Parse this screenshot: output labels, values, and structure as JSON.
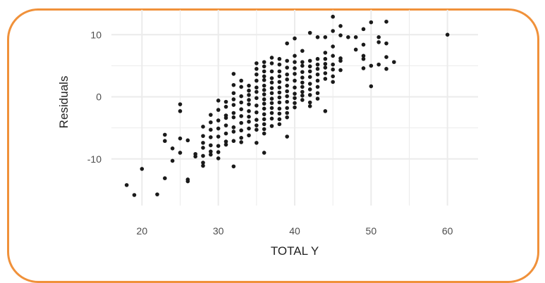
{
  "chart_data": {
    "type": "scatter",
    "title": "",
    "xlabel": "TOTAL Y",
    "ylabel": "Residuals",
    "xlim": [
      16,
      64
    ],
    "ylim": [
      -17.5,
      14
    ],
    "x_ticks": [
      20,
      30,
      40,
      50,
      60
    ],
    "y_ticks": [
      -10,
      0,
      10
    ],
    "x_tick_labels": [
      "20",
      "30",
      "40",
      "50",
      "60"
    ],
    "y_tick_labels": [
      "-10",
      "0",
      "10"
    ],
    "grid": true,
    "point_color": "#1a1a1a",
    "grid_color": "#ebebeb",
    "frame_color": "#f0913a",
    "points": [
      [
        18,
        -14.2
      ],
      [
        19,
        -15.8
      ],
      [
        20,
        -11.6
      ],
      [
        22,
        -15.7
      ],
      [
        23,
        -13.1
      ],
      [
        23,
        -6.1
      ],
      [
        23,
        -7.1
      ],
      [
        24,
        -8.3
      ],
      [
        24,
        -10.3
      ],
      [
        25,
        -1.2
      ],
      [
        25,
        -2.3
      ],
      [
        25,
        -6.7
      ],
      [
        25,
        -9.0
      ],
      [
        26,
        -7.0
      ],
      [
        26,
        -13.3
      ],
      [
        26,
        -13.6
      ],
      [
        27,
        -9.2
      ],
      [
        27,
        -9.6
      ],
      [
        28,
        -4.8
      ],
      [
        28,
        -6.3
      ],
      [
        28,
        -7.4
      ],
      [
        28,
        -8.2
      ],
      [
        28,
        -9.5
      ],
      [
        28,
        -10.6
      ],
      [
        28,
        -11.1
      ],
      [
        29,
        -2.9
      ],
      [
        29,
        -4.1
      ],
      [
        29,
        -5.3
      ],
      [
        29,
        -6.5
      ],
      [
        29,
        -7.8
      ],
      [
        29,
        -8.8
      ],
      [
        29,
        -9.3
      ],
      [
        30,
        -0.6
      ],
      [
        30,
        -2.1
      ],
      [
        30,
        -3.8
      ],
      [
        30,
        -5.1
      ],
      [
        30,
        -6.4
      ],
      [
        30,
        -7.9
      ],
      [
        30,
        -8.9
      ],
      [
        30,
        -9.9
      ],
      [
        31,
        -0.8
      ],
      [
        31,
        -1.6
      ],
      [
        31,
        -3.0
      ],
      [
        31,
        -3.4
      ],
      [
        31,
        -4.6
      ],
      [
        31,
        -5.9
      ],
      [
        31,
        -7.2
      ],
      [
        31,
        -7.7
      ],
      [
        32,
        3.7
      ],
      [
        32,
        1.9
      ],
      [
        32,
        0.6
      ],
      [
        32,
        -0.4
      ],
      [
        32,
        -1.3
      ],
      [
        32,
        -2.6
      ],
      [
        32,
        -3.3
      ],
      [
        32,
        -4.9
      ],
      [
        32,
        -5.6
      ],
      [
        32,
        -7.1
      ],
      [
        32,
        -11.2
      ],
      [
        33,
        2.6
      ],
      [
        33,
        1.6
      ],
      [
        33,
        0.1
      ],
      [
        33,
        -0.9
      ],
      [
        33,
        -2.0
      ],
      [
        33,
        -3.1
      ],
      [
        33,
        -4.2
      ],
      [
        33,
        -5.4
      ],
      [
        33,
        -6.6
      ],
      [
        33,
        -7.3
      ],
      [
        34,
        1.8
      ],
      [
        34,
        1.0
      ],
      [
        34,
        0.3
      ],
      [
        34,
        -0.5
      ],
      [
        34,
        -1.2
      ],
      [
        34,
        -2.3
      ],
      [
        34,
        -3.2
      ],
      [
        34,
        -4.0
      ],
      [
        34,
        -5.1
      ],
      [
        34,
        -6.2
      ],
      [
        35,
        5.4
      ],
      [
        35,
        4.5
      ],
      [
        35,
        3.6
      ],
      [
        35,
        2.6
      ],
      [
        35,
        1.5
      ],
      [
        35,
        0.8
      ],
      [
        35,
        -0.2
      ],
      [
        35,
        -1.4
      ],
      [
        35,
        -2.5
      ],
      [
        35,
        -3.7
      ],
      [
        35,
        -4.6
      ],
      [
        35,
        -5.3
      ],
      [
        35,
        -7.4
      ],
      [
        36,
        5.6
      ],
      [
        36,
        4.9
      ],
      [
        36,
        4.1
      ],
      [
        36,
        3.3
      ],
      [
        36,
        2.7
      ],
      [
        36,
        1.8
      ],
      [
        36,
        1.1
      ],
      [
        36,
        0.4
      ],
      [
        36,
        -0.4
      ],
      [
        36,
        -1.1
      ],
      [
        36,
        -1.9
      ],
      [
        36,
        -2.8
      ],
      [
        36,
        -3.6
      ],
      [
        36,
        -4.4
      ],
      [
        36,
        -5.2
      ],
      [
        36,
        -5.9
      ],
      [
        36,
        -9.0
      ],
      [
        37,
        6.3
      ],
      [
        37,
        5.4
      ],
      [
        37,
        4.1
      ],
      [
        37,
        3.0
      ],
      [
        37,
        2.3
      ],
      [
        37,
        1.4
      ],
      [
        37,
        0.6
      ],
      [
        37,
        -0.3
      ],
      [
        37,
        -1.0
      ],
      [
        37,
        -1.8
      ],
      [
        37,
        -2.6
      ],
      [
        37,
        -3.5
      ],
      [
        37,
        -4.7
      ],
      [
        38,
        6.1
      ],
      [
        38,
        5.2
      ],
      [
        38,
        4.1
      ],
      [
        38,
        3.3
      ],
      [
        38,
        2.4
      ],
      [
        38,
        1.5
      ],
      [
        38,
        0.7
      ],
      [
        38,
        -0.1
      ],
      [
        38,
        -0.9
      ],
      [
        38,
        -1.9
      ],
      [
        38,
        -2.7
      ],
      [
        38,
        -3.6
      ],
      [
        38,
        -4.4
      ],
      [
        39,
        8.6
      ],
      [
        39,
        5.8
      ],
      [
        39,
        4.7
      ],
      [
        39,
        3.6
      ],
      [
        39,
        2.8
      ],
      [
        39,
        1.8
      ],
      [
        39,
        0.9
      ],
      [
        39,
        0.1
      ],
      [
        39,
        -0.8
      ],
      [
        39,
        -1.8
      ],
      [
        39,
        -2.6
      ],
      [
        39,
        -3.3
      ],
      [
        39,
        -6.4
      ],
      [
        40,
        9.4
      ],
      [
        40,
        6.6
      ],
      [
        40,
        5.6
      ],
      [
        40,
        4.6
      ],
      [
        40,
        3.7
      ],
      [
        40,
        2.6
      ],
      [
        40,
        1.5
      ],
      [
        40,
        0.5
      ],
      [
        40,
        -0.2
      ],
      [
        40,
        -1.0
      ],
      [
        40,
        -1.7
      ],
      [
        41,
        7.4
      ],
      [
        41,
        5.6
      ],
      [
        41,
        5.0
      ],
      [
        41,
        4.0
      ],
      [
        41,
        3.1
      ],
      [
        41,
        2.3
      ],
      [
        41,
        1.6
      ],
      [
        41,
        0.8
      ],
      [
        41,
        0.2
      ],
      [
        41,
        -0.5
      ],
      [
        42,
        10.3
      ],
      [
        42,
        5.8
      ],
      [
        42,
        4.9
      ],
      [
        42,
        4.1
      ],
      [
        42,
        3.2
      ],
      [
        42,
        2.1
      ],
      [
        42,
        1.2
      ],
      [
        42,
        0.3
      ],
      [
        42,
        -0.9
      ],
      [
        42,
        -1.5
      ],
      [
        43,
        9.6
      ],
      [
        43,
        6.1
      ],
      [
        43,
        5.2
      ],
      [
        43,
        4.5
      ],
      [
        43,
        3.6
      ],
      [
        43,
        2.6
      ],
      [
        43,
        1.6
      ],
      [
        43,
        0.6
      ],
      [
        43,
        -0.3
      ],
      [
        44,
        9.6
      ],
      [
        44,
        7.1
      ],
      [
        44,
        6.1
      ],
      [
        44,
        5.3
      ],
      [
        44,
        4.7
      ],
      [
        44,
        3.8
      ],
      [
        44,
        2.9
      ],
      [
        44,
        -2.3
      ],
      [
        45,
        12.9
      ],
      [
        45,
        10.6
      ],
      [
        45,
        8.1
      ],
      [
        45,
        6.6
      ],
      [
        45,
        5.2
      ],
      [
        45,
        4.4
      ],
      [
        45,
        3.3
      ],
      [
        45,
        2.4
      ],
      [
        46,
        11.4
      ],
      [
        46,
        9.9
      ],
      [
        46,
        6.2
      ],
      [
        46,
        5.8
      ],
      [
        46,
        4.3
      ],
      [
        47,
        9.6
      ],
      [
        48,
        9.6
      ],
      [
        48,
        7.6
      ],
      [
        49,
        10.9
      ],
      [
        49,
        8.4
      ],
      [
        49,
        6.6
      ],
      [
        49,
        6.1
      ],
      [
        49,
        4.6
      ],
      [
        50,
        12.0
      ],
      [
        50,
        5.0
      ],
      [
        50,
        1.7
      ],
      [
        51,
        9.6
      ],
      [
        51,
        8.8
      ],
      [
        51,
        5.2
      ],
      [
        52,
        12.1
      ],
      [
        52,
        8.6
      ],
      [
        52,
        6.4
      ],
      [
        52,
        4.5
      ],
      [
        53,
        5.6
      ],
      [
        60,
        10.0
      ]
    ]
  }
}
